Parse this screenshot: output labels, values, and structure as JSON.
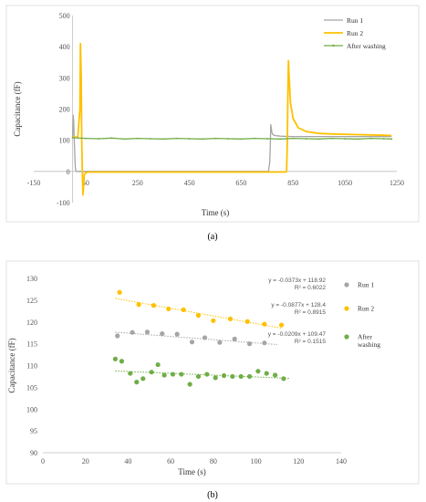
{
  "figure": {
    "caption_a": "(a)",
    "caption_b": "(b)"
  },
  "chart_data": [
    {
      "type": "line",
      "xlabel": "Time  (s)",
      "ylabel": "Capacitance (fF)",
      "xlim": [
        -150,
        1250
      ],
      "ylim": [
        -100,
        500
      ],
      "xticks": [
        -150,
        50,
        250,
        450,
        650,
        850,
        1050,
        1250
      ],
      "yticks": [
        -100,
        0,
        100,
        200,
        300,
        400,
        500
      ],
      "legend": "top-right",
      "series": [
        {
          "name": "Run 1",
          "color": "#a5a5a5",
          "x": [
            0,
            2,
            4,
            6,
            8,
            10,
            12,
            15,
            40,
            200,
            400,
            600,
            755,
            760,
            762,
            764,
            766,
            768,
            772,
            780,
            800,
            850,
            900,
            1000,
            1100,
            1200,
            1230
          ],
          "y": [
            110,
            180,
            160,
            110,
            60,
            15,
            2,
            0,
            0,
            0,
            0,
            0,
            0,
            30,
            80,
            150,
            140,
            125,
            118,
            115,
            113,
            112,
            112,
            112,
            112,
            112,
            112
          ]
        },
        {
          "name": "Run 2",
          "color": "#ffc000",
          "x": [
            0,
            20,
            28,
            30,
            33,
            35,
            38,
            40,
            45,
            50,
            55,
            60,
            100,
            300,
            500,
            700,
            820,
            825,
            828,
            830,
            832,
            835,
            840,
            850,
            870,
            900,
            950,
            1000,
            1100,
            1200,
            1230
          ],
          "y": [
            110,
            110,
            200,
            410,
            300,
            100,
            -20,
            -75,
            -10,
            -5,
            -3,
            -2,
            -2,
            -2,
            -2,
            -2,
            -2,
            0,
            100,
            250,
            355,
            300,
            220,
            170,
            140,
            128,
            122,
            120,
            118,
            116,
            115
          ]
        },
        {
          "name": "After washing",
          "color": "#70ad47",
          "x": [
            0,
            50,
            100,
            150,
            200,
            250,
            300,
            350,
            400,
            450,
            500,
            550,
            600,
            650,
            700,
            750,
            800,
            850,
            900,
            950,
            1000,
            1050,
            1100,
            1150,
            1200,
            1230
          ],
          "y": [
            108,
            106,
            105,
            107,
            104,
            106,
            105,
            104,
            106,
            105,
            104,
            106,
            105,
            104,
            106,
            105,
            104,
            106,
            105,
            104,
            106,
            105,
            104,
            106,
            105,
            104
          ]
        }
      ]
    },
    {
      "type": "scatter",
      "xlabel": "Time  (s)",
      "ylabel": "Capacitance (fF)",
      "xlim": [
        0,
        140
      ],
      "ylim": [
        90,
        130
      ],
      "xticks": [
        0,
        20,
        40,
        60,
        80,
        100,
        120,
        140
      ],
      "yticks": [
        90,
        95,
        100,
        105,
        110,
        115,
        120,
        125,
        130
      ],
      "legend": "right",
      "series": [
        {
          "name": "Run 1",
          "color": "#a5a5a5",
          "x": [
            35,
            42,
            49,
            56,
            63,
            70,
            76,
            83,
            90,
            97,
            104
          ],
          "y": [
            116.8,
            117.6,
            117.7,
            117.3,
            117.2,
            115.4,
            116.4,
            115.3,
            116.1,
            115.0,
            115.2
          ],
          "trend_eq": "y = -0.0373x + 118.92",
          "r2": "R² = 0.6022",
          "trend": [
            118.92,
            -0.0373
          ],
          "trend_x": [
            34,
            110
          ]
        },
        {
          "name": "Run 2",
          "color": "#ffc000",
          "x": [
            36,
            45,
            52,
            59,
            66,
            73,
            80,
            88,
            96,
            104,
            112
          ],
          "y": [
            126.8,
            124.0,
            123.8,
            123.0,
            122.8,
            121.5,
            120.3,
            120.7,
            120.1,
            119.5,
            119.3
          ],
          "trend_eq": "y = -0.0877x + 128.4",
          "r2": "R² = 0.8915",
          "trend": [
            128.4,
            -0.0877
          ],
          "trend_x": [
            34,
            112
          ]
        },
        {
          "name": "After washing",
          "color": "#70ad47",
          "x": [
            34,
            37,
            41,
            44,
            47,
            51,
            54,
            57,
            61,
            65,
            69,
            73,
            77,
            81,
            85,
            89,
            93,
            97,
            101,
            105,
            109,
            113
          ],
          "y": [
            111.5,
            111.0,
            108.2,
            106.2,
            107.0,
            108.5,
            110.2,
            107.8,
            108.0,
            108.0,
            105.7,
            107.5,
            108.0,
            107.2,
            107.7,
            107.5,
            107.5,
            107.5,
            108.7,
            108.2,
            107.8,
            107.0
          ],
          "trend_eq": "y = -0.0209x + 109.47",
          "r2": "R² = 0.1515",
          "trend": [
            109.47,
            -0.0209
          ],
          "trend_x": [
            34,
            116
          ]
        }
      ]
    }
  ]
}
